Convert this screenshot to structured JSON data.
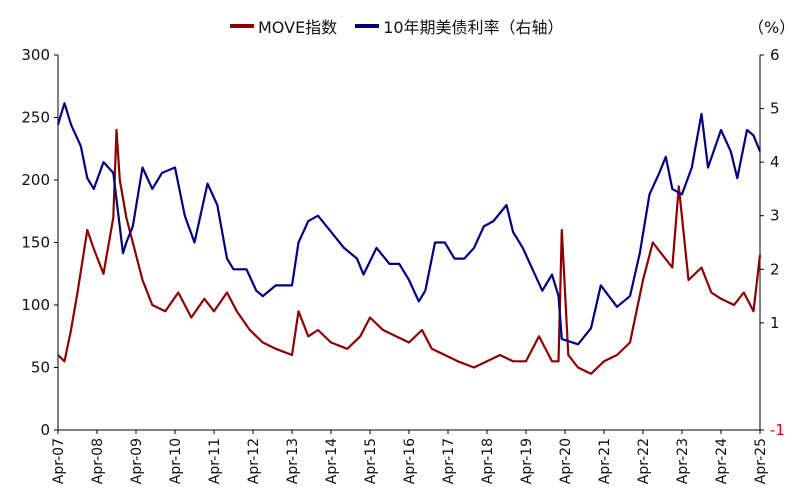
{
  "legend": {
    "series1": "MOVE指数",
    "series2": "10年期美债利率（右轴）"
  },
  "right_unit": "（%）",
  "colors": {
    "move": "#8b0000",
    "yield": "#000080",
    "neg_tick": "#e00000"
  },
  "chart_data": {
    "type": "line",
    "x_tick_labels": [
      "Apr-07",
      "Apr-08",
      "Apr-09",
      "Apr-10",
      "Apr-11",
      "Apr-12",
      "Apr-13",
      "Apr-14",
      "Apr-15",
      "Apr-16",
      "Apr-17",
      "Apr-18",
      "Apr-19",
      "Apr-20",
      "Apr-21",
      "Apr-22",
      "Apr-23",
      "Apr-24",
      "Apr-25"
    ],
    "left_axis": {
      "ylim": [
        0,
        300
      ],
      "ticks": [
        "0",
        "50",
        "100",
        "150",
        "200",
        "250",
        "300"
      ]
    },
    "right_axis": {
      "ylim": [
        -1,
        6
      ],
      "ticks": [
        "-1",
        "1",
        "2",
        "3",
        "4",
        "5",
        "6"
      ]
    },
    "grid": false,
    "legend_position": "top-center",
    "series": [
      {
        "name": "MOVE指数",
        "axis": "left",
        "x": [
          "2007-04",
          "2007-06",
          "2007-08",
          "2007-10",
          "2008-01",
          "2008-03",
          "2008-06",
          "2008-09",
          "2008-10",
          "2008-11",
          "2009-01",
          "2009-03",
          "2009-06",
          "2009-09",
          "2010-01",
          "2010-05",
          "2010-09",
          "2011-01",
          "2011-04",
          "2011-08",
          "2011-11",
          "2012-03",
          "2012-07",
          "2012-11",
          "2013-04",
          "2013-06",
          "2013-09",
          "2013-12",
          "2014-04",
          "2014-09",
          "2015-01",
          "2015-04",
          "2015-08",
          "2015-12",
          "2016-04",
          "2016-08",
          "2016-11",
          "2017-03",
          "2017-07",
          "2017-12",
          "2018-04",
          "2018-08",
          "2018-12",
          "2019-04",
          "2019-08",
          "2019-12",
          "2020-02",
          "2020-03",
          "2020-05",
          "2020-08",
          "2020-12",
          "2021-04",
          "2021-08",
          "2021-12",
          "2022-04",
          "2022-07",
          "2022-10",
          "2023-01",
          "2023-03",
          "2023-06",
          "2023-10",
          "2024-01",
          "2024-04",
          "2024-08",
          "2024-11",
          "2025-02",
          "2025-04"
        ],
        "values": [
          60,
          55,
          80,
          110,
          160,
          145,
          125,
          170,
          240,
          200,
          170,
          150,
          120,
          100,
          95,
          110,
          90,
          105,
          95,
          110,
          95,
          80,
          70,
          65,
          60,
          95,
          75,
          80,
          70,
          65,
          75,
          90,
          80,
          75,
          70,
          80,
          65,
          60,
          55,
          50,
          55,
          60,
          55,
          55,
          75,
          55,
          55,
          160,
          60,
          50,
          45,
          55,
          60,
          70,
          120,
          150,
          140,
          130,
          195,
          120,
          130,
          110,
          105,
          100,
          110,
          95,
          140
        ]
      },
      {
        "name": "10年期美债利率（右轴）",
        "axis": "right",
        "x": [
          "2007-04",
          "2007-06",
          "2007-08",
          "2007-11",
          "2008-01",
          "2008-03",
          "2008-06",
          "2008-09",
          "2008-12",
          "2009-01",
          "2009-03",
          "2009-06",
          "2009-09",
          "2009-12",
          "2010-04",
          "2010-07",
          "2010-10",
          "2011-02",
          "2011-05",
          "2011-08",
          "2011-10",
          "2012-02",
          "2012-05",
          "2012-07",
          "2012-11",
          "2013-04",
          "2013-06",
          "2013-09",
          "2013-12",
          "2014-04",
          "2014-08",
          "2014-12",
          "2015-02",
          "2015-06",
          "2015-10",
          "2016-01",
          "2016-04",
          "2016-07",
          "2016-09",
          "2016-12",
          "2017-03",
          "2017-06",
          "2017-09",
          "2017-12",
          "2018-03",
          "2018-06",
          "2018-10",
          "2018-12",
          "2019-03",
          "2019-06",
          "2019-09",
          "2019-12",
          "2020-02",
          "2020-03",
          "2020-08",
          "2020-12",
          "2021-03",
          "2021-08",
          "2021-12",
          "2022-03",
          "2022-06",
          "2022-09",
          "2022-11",
          "2023-01",
          "2023-04",
          "2023-07",
          "2023-10",
          "2023-12",
          "2024-04",
          "2024-07",
          "2024-09",
          "2024-12",
          "2025-02",
          "2025-04"
        ],
        "values": [
          4.7,
          5.1,
          4.7,
          4.3,
          3.7,
          3.5,
          4.0,
          3.8,
          2.3,
          2.5,
          2.8,
          3.9,
          3.5,
          3.8,
          3.9,
          3.0,
          2.5,
          3.6,
          3.2,
          2.2,
          2.0,
          2.0,
          1.6,
          1.5,
          1.7,
          1.7,
          2.5,
          2.9,
          3.0,
          2.7,
          2.4,
          2.2,
          1.9,
          2.4,
          2.1,
          2.1,
          1.8,
          1.4,
          1.6,
          2.5,
          2.5,
          2.2,
          2.2,
          2.4,
          2.8,
          2.9,
          3.2,
          2.7,
          2.4,
          2.0,
          1.6,
          1.9,
          1.5,
          0.7,
          0.6,
          0.9,
          1.7,
          1.3,
          1.5,
          2.3,
          3.4,
          3.8,
          4.1,
          3.5,
          3.4,
          3.9,
          4.9,
          3.9,
          4.6,
          4.2,
          3.7,
          4.6,
          4.5,
          4.2
        ]
      }
    ]
  }
}
